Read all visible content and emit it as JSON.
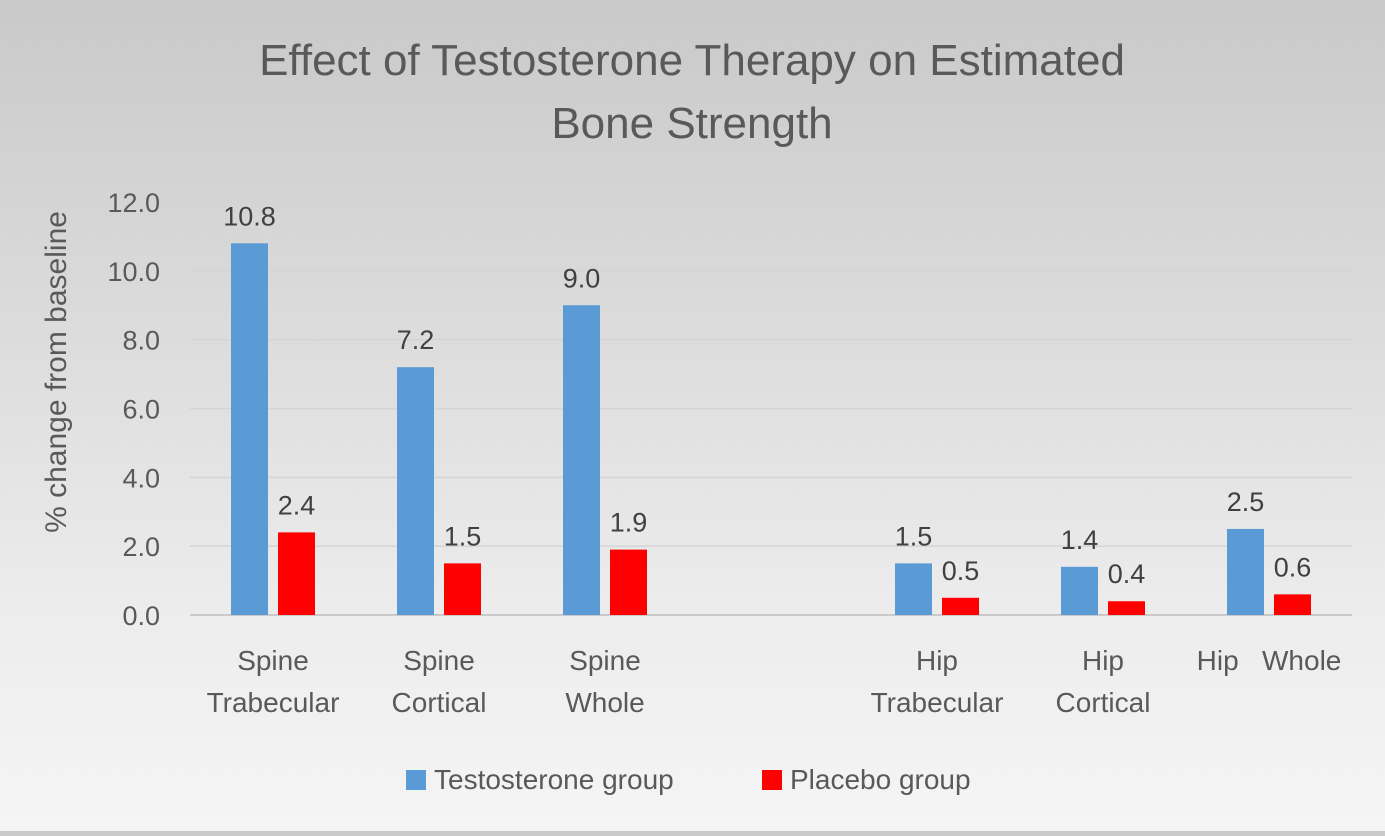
{
  "chart_data": {
    "type": "bar",
    "title": [
      "Effect of Testosterone Therapy on Estimated",
      "Bone Strength"
    ],
    "ylabel": "% change from baseline",
    "xlabel": "",
    "ylim": [
      0,
      12
    ],
    "yticks": [
      "0.0",
      "2.0",
      "4.0",
      "6.0",
      "8.0",
      "10.0",
      "12.0"
    ],
    "grid": true,
    "legend_position": "bottom",
    "categories": [
      [
        "Spine",
        "Trabecular"
      ],
      [
        "Spine",
        "Cortical"
      ],
      [
        "Spine",
        "Whole"
      ],
      [],
      [
        "Hip",
        "Trabecular"
      ],
      [
        "Hip",
        "Cortical"
      ],
      [
        "Hip   Whole"
      ]
    ],
    "series": [
      {
        "name": "Testosterone group",
        "color": "#5b9bd5",
        "values": [
          10.8,
          7.2,
          9.0,
          null,
          1.5,
          1.4,
          2.5
        ],
        "labels": [
          "10.8",
          "7.2",
          "9.0",
          "",
          "1.5",
          "1.4",
          "2.5"
        ]
      },
      {
        "name": "Placebo group",
        "color": "#ff0000",
        "values": [
          2.4,
          1.5,
          1.9,
          null,
          0.5,
          0.4,
          0.6
        ],
        "labels": [
          "2.4",
          "1.5",
          "1.9",
          "",
          "0.5",
          "0.4",
          "0.6"
        ]
      }
    ]
  }
}
